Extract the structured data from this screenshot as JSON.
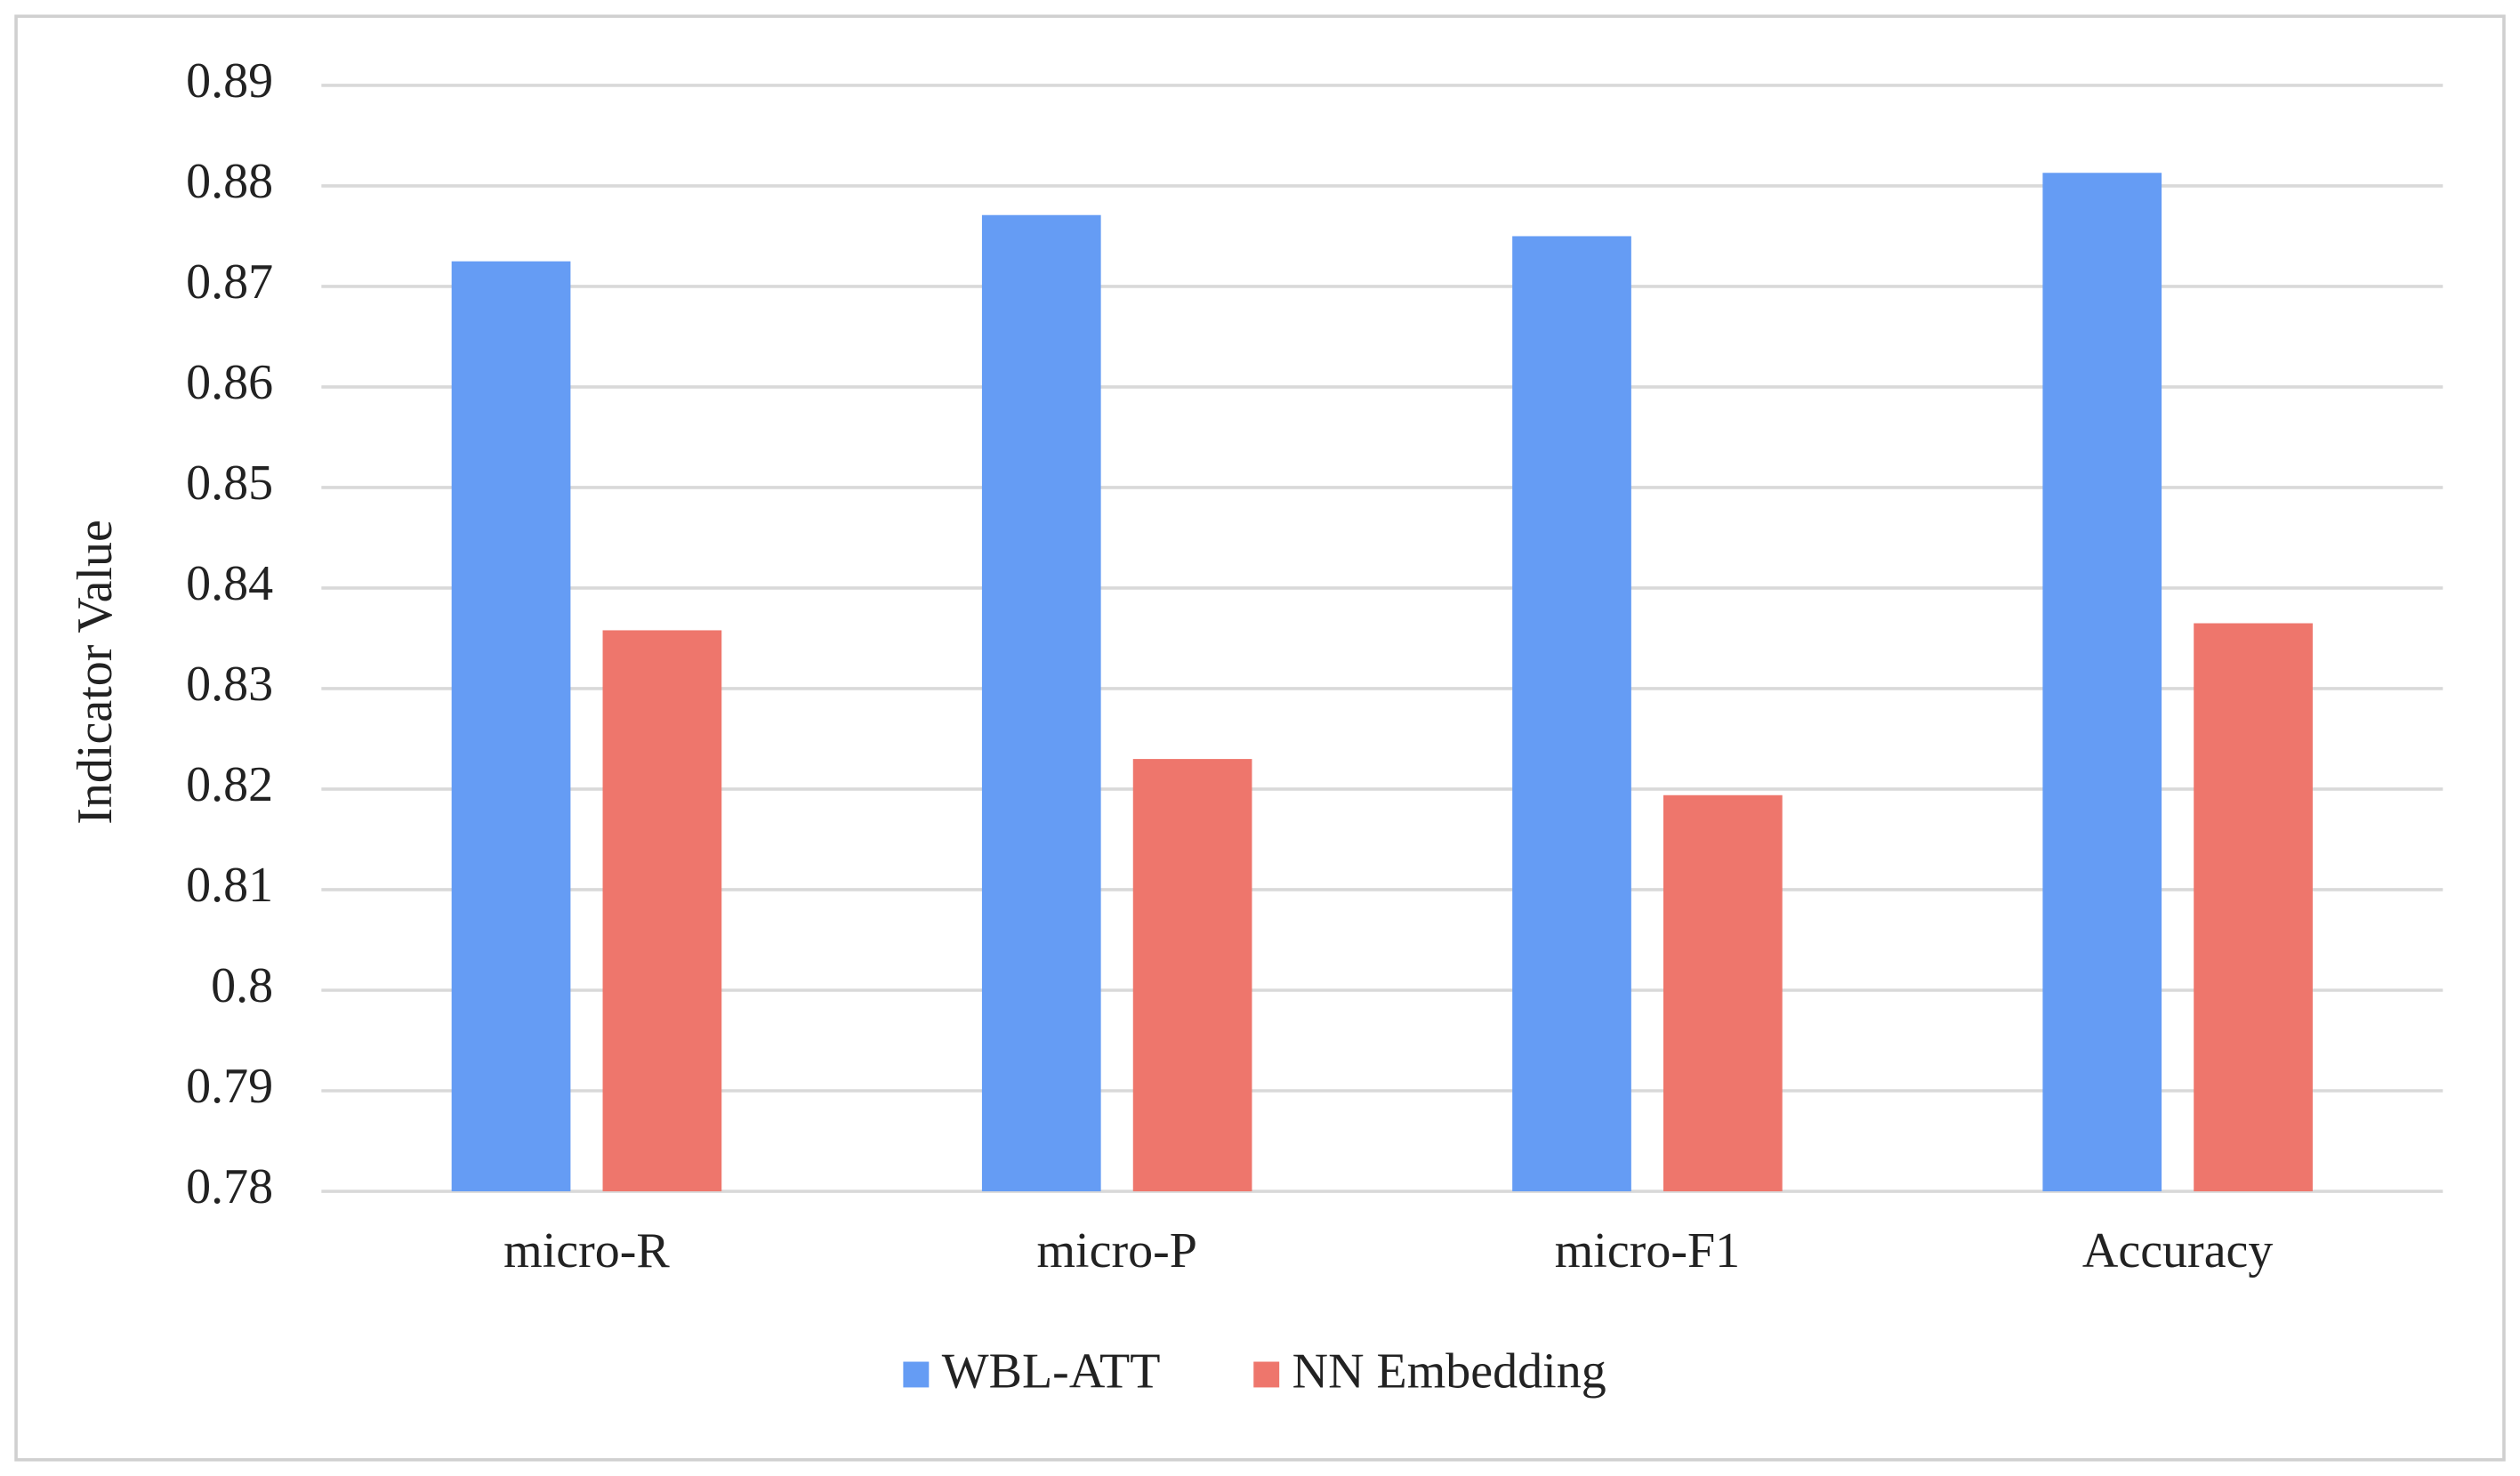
{
  "chart_data": {
    "type": "bar",
    "y_label": "Indicator Value",
    "categories": [
      "micro-R",
      "micro-P",
      "micro-F1",
      "Accuracy"
    ],
    "series": [
      {
        "name": "WBL-ATT",
        "color": "#659cf4",
        "values": [
          0.8725,
          0.8771,
          0.875,
          0.8813
        ]
      },
      {
        "name": "NN Embedding",
        "color": "#ee766c",
        "values": [
          0.8358,
          0.823,
          0.8194,
          0.8365
        ]
      }
    ],
    "ylim": [
      0.78,
      0.89
    ],
    "yticks": [
      0.78,
      0.79,
      0.8,
      0.81,
      0.82,
      0.83,
      0.84,
      0.85,
      0.86,
      0.87,
      0.88,
      0.89
    ],
    "grid": true,
    "legend": "bottom"
  }
}
